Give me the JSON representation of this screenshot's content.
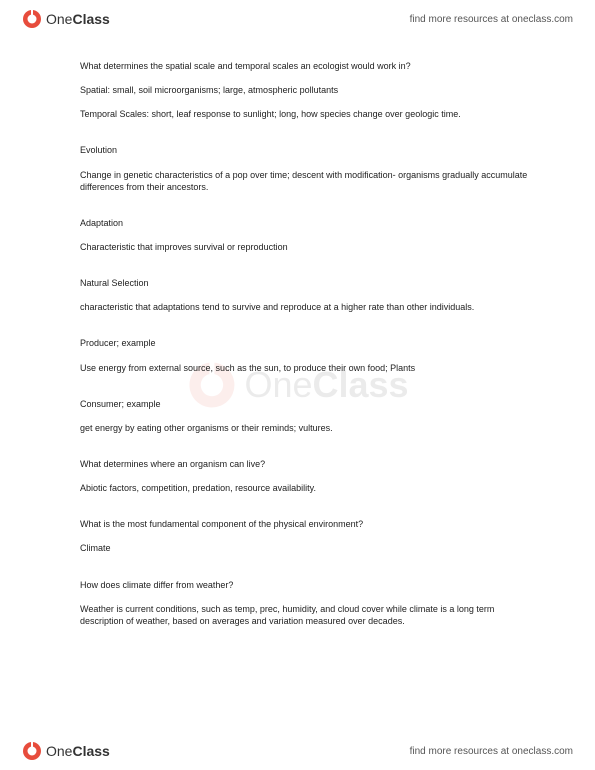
{
  "brand": {
    "name_part1": "One",
    "name_part2": "Class",
    "tagline": "find more resources at oneclass.com",
    "logo_color_outer": "#e74c3c",
    "logo_color_inner": "#ffffff"
  },
  "document": {
    "text_color": "#222222",
    "font_size_pt": 7,
    "background_color": "#ffffff",
    "sections": [
      {
        "heading": "What determines the spatial scale and temporal scales an ecologist would work in?",
        "lines": [
          "Spatial: small, soil microorganisms; large, atmospheric pollutants",
          "Temporal Scales: short, leaf response to sunlight; long, how species change over geologic time."
        ]
      },
      {
        "heading": "Evolution",
        "lines": [
          "Change in genetic characteristics of a pop over time; descent with modification- organisms gradually accumulate differences from their ancestors."
        ]
      },
      {
        "heading": "Adaptation",
        "lines": [
          "Characteristic that improves survival or reproduction"
        ]
      },
      {
        "heading": "Natural Selection",
        "lines": [
          "characteristic that adaptations tend to survive and reproduce at a higher rate than other individuals."
        ]
      },
      {
        "heading": "Producer; example",
        "lines": [
          "Use energy from external source, such as the sun, to produce their own food; Plants"
        ]
      },
      {
        "heading": "Consumer; example",
        "lines": [
          "get energy by eating other organisms or their reminds; vultures."
        ]
      },
      {
        "heading": "What determines where an organism can live?",
        "lines": [
          "Abiotic factors, competition, predation, resource availability."
        ]
      },
      {
        "heading": "What is the most fundamental component of the physical environment?",
        "lines": [
          "Climate"
        ]
      },
      {
        "heading": "How does climate differ from weather?",
        "lines": [
          "Weather is current conditions, such as temp, prec, humidity, and cloud cover while climate is a long term description of weather, based on averages and variation measured over decades."
        ]
      }
    ]
  }
}
